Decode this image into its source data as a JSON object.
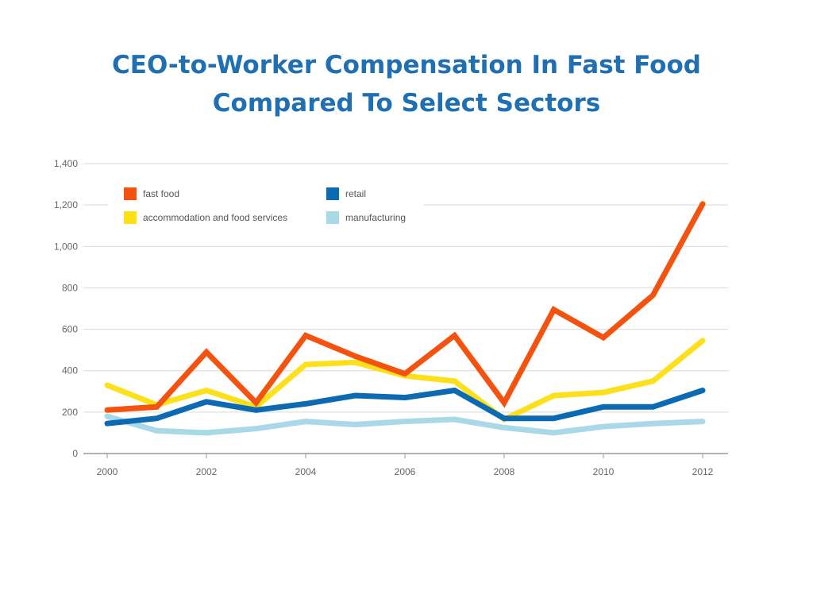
{
  "chart_data": {
    "type": "line",
    "title": [
      "CEO-to-Worker Compensation In Fast Food",
      "Compared To Select Sectors"
    ],
    "xlabel": "",
    "ylabel": "",
    "x": [
      2000,
      2001,
      2002,
      2003,
      2004,
      2005,
      2006,
      2007,
      2008,
      2009,
      2010,
      2011,
      2012
    ],
    "xticks": [
      2000,
      2002,
      2004,
      2006,
      2008,
      2010,
      2012
    ],
    "xtick_labels": [
      "2000",
      "2002",
      "2004",
      "2006",
      "2008",
      "2010",
      "2012"
    ],
    "xlim": [
      2000,
      2012
    ],
    "ylim": [
      0,
      1400
    ],
    "yticks": [
      0,
      200,
      400,
      600,
      800,
      1000,
      1200,
      1400
    ],
    "ytick_labels": [
      "0",
      "200",
      "400",
      "600",
      "800",
      "1,000",
      "1,200",
      "1,400"
    ],
    "grid": true,
    "legend_position": "top-left",
    "series": [
      {
        "name": "fast food",
        "color": "#f4520f",
        "values": [
          210,
          225,
          490,
          245,
          570,
          470,
          385,
          570,
          245,
          695,
          560,
          765,
          1205
        ]
      },
      {
        "name": "retail",
        "color": "#0c6ab2",
        "values": [
          145,
          170,
          250,
          210,
          240,
          280,
          270,
          305,
          170,
          170,
          225,
          225,
          305
        ]
      },
      {
        "name": "accommodation and food services",
        "color": "#fde01c",
        "values": [
          330,
          235,
          305,
          225,
          430,
          440,
          375,
          350,
          165,
          280,
          295,
          350,
          545
        ]
      },
      {
        "name": "manufacturing",
        "color": "#a9d8e6",
        "values": [
          180,
          110,
          100,
          120,
          155,
          140,
          155,
          165,
          125,
          100,
          130,
          145,
          155
        ]
      }
    ],
    "draw_order": [
      "manufacturing",
      "accommodation and food services",
      "retail",
      "fast food"
    ]
  }
}
